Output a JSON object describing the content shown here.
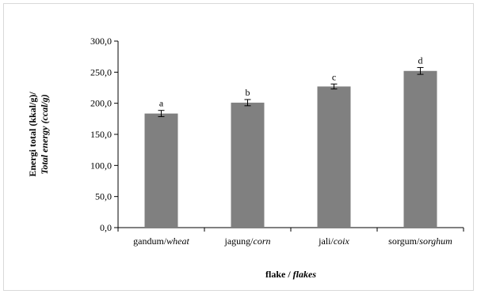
{
  "chart_data": {
    "type": "bar",
    "categories": [
      {
        "main": "gandum/",
        "italic": "wheat"
      },
      {
        "main": "jagung/",
        "italic": "corn"
      },
      {
        "main": "jali/",
        "italic": "coix"
      },
      {
        "main": "sorgum/",
        "italic": "sorghum"
      }
    ],
    "values": [
      183.5,
      201.0,
      227.0,
      252.0
    ],
    "errors": [
      5.0,
      5.0,
      4.0,
      5.5
    ],
    "significance_letters": [
      "a",
      "b",
      "c",
      "d"
    ],
    "xlabel": {
      "main": "flake / ",
      "italic": "flakes"
    },
    "ylabel": {
      "line1": "Energi total (kkal/g)/",
      "line2": "Total energy (ccal/g)"
    },
    "ylim": [
      0,
      300
    ],
    "yticks": [
      "0,0",
      "50,0",
      "100,0",
      "150,0",
      "200,0",
      "250,0",
      "300,0"
    ],
    "ytick_values": [
      0,
      50,
      100,
      150,
      200,
      250,
      300
    ],
    "grid": false,
    "legend": "none",
    "bar_color": "#808080"
  }
}
